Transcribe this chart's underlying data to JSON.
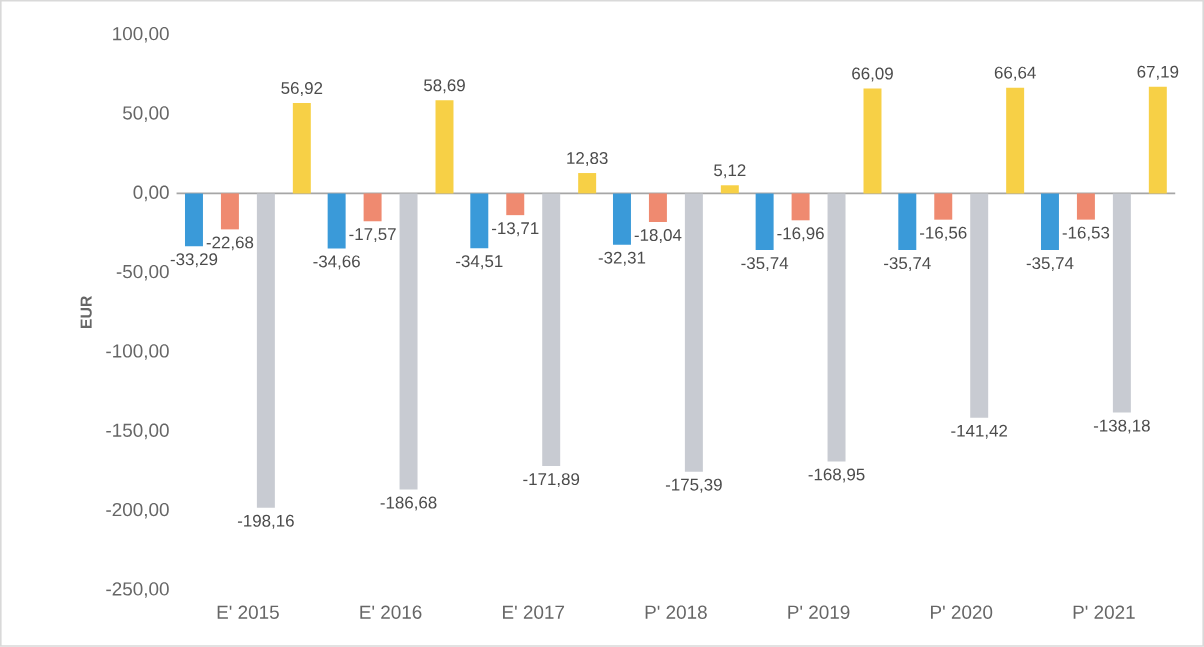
{
  "chart_data": {
    "type": "bar",
    "ylabel": "EUR",
    "categories": [
      "E' 2015",
      "E' 2016",
      "E' 2017",
      "P' 2018",
      "P' 2019",
      "P' 2020",
      "P' 2021"
    ],
    "series": [
      {
        "color": "#3a9ad9",
        "values": [
          -33.29,
          -34.66,
          -34.51,
          -32.31,
          -35.74,
          -35.74,
          -35.74
        ],
        "value_labels": [
          "-33,29",
          "-34,66",
          "-34,51",
          "-32,31",
          "-35,74",
          "-35,74",
          "-35,74"
        ]
      },
      {
        "color": "#ef8a70",
        "values": [
          -22.68,
          -17.57,
          -13.71,
          -18.04,
          -16.96,
          -16.56,
          -16.53
        ],
        "value_labels": [
          "-22,68",
          "-17,57",
          "-13,71",
          "-18,04",
          "-16,96",
          "-16,56",
          "-16,53"
        ]
      },
      {
        "color": "#c8cbd2",
        "values": [
          -198.16,
          -186.68,
          -171.89,
          -175.39,
          -168.95,
          -141.42,
          -138.18
        ],
        "value_labels": [
          "-198,16",
          "-186,68",
          "-171,89",
          "-175,39",
          "-168,95",
          "-141,42",
          "-138,18"
        ]
      },
      {
        "color": "#f7d046",
        "values": [
          56.92,
          58.69,
          12.83,
          5.12,
          66.09,
          66.64,
          67.19
        ],
        "value_labels": [
          "56,92",
          "58,69",
          "12,83",
          "5,12",
          "66,09",
          "66,64",
          "67,19"
        ]
      }
    ],
    "ylim": [
      -250,
      100
    ],
    "yticks": [
      {
        "value": -250,
        "label": "-250,00"
      },
      {
        "value": -200,
        "label": "-200,00"
      },
      {
        "value": -150,
        "label": "-150,00"
      },
      {
        "value": -100,
        "label": "-100,00"
      },
      {
        "value": -50,
        "label": "-50,00"
      },
      {
        "value": 0,
        "label": "0,00"
      },
      {
        "value": 50,
        "label": "50,00"
      },
      {
        "value": 100,
        "label": "100,00"
      }
    ]
  }
}
